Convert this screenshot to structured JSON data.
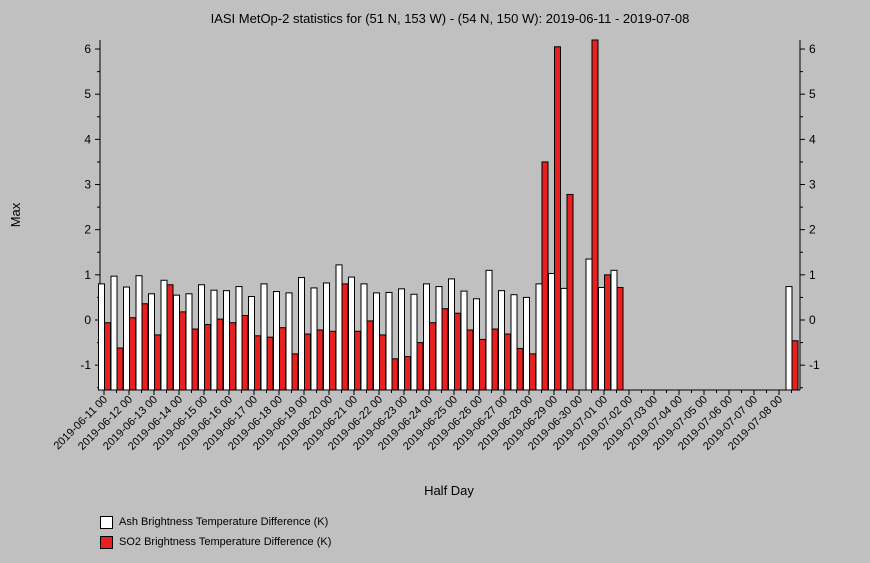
{
  "chart_data": {
    "type": "bar",
    "title": "IASI MetOp-2 statistics for (51 N, 153 W) - (54 N, 150 W): 2019-06-11 - 2019-07-08",
    "xlabel": "Half Day",
    "ylabel": "Max",
    "ylim": [
      -1.55,
      6.2
    ],
    "yticks": [
      -1,
      0,
      1,
      2,
      3,
      4,
      5,
      6
    ],
    "x_tick_labels": [
      "2019-06-11 00",
      "2019-06-12 00",
      "2019-06-13 00",
      "2019-06-14 00",
      "2019-06-15 00",
      "2019-06-16 00",
      "2019-06-17 00",
      "2019-06-18 00",
      "2019-06-19 00",
      "2019-06-20 00",
      "2019-06-21 00",
      "2019-06-22 00",
      "2019-06-23 00",
      "2019-06-24 00",
      "2019-06-25 00",
      "2019-06-26 00",
      "2019-06-27 00",
      "2019-06-28 00",
      "2019-06-29 00",
      "2019-06-30 00",
      "2019-07-01 00",
      "2019-07-02 00",
      "2019-07-03 00",
      "2019-07-04 00",
      "2019-07-05 00",
      "2019-07-06 00",
      "2019-07-07 00",
      "2019-07-08 00"
    ],
    "grid": false,
    "legend_position": "bottom-left",
    "series": [
      {
        "name": "Ash Brightness Temperature Difference (K)",
        "color": "#ffffff",
        "values": [
          0.8,
          0.97,
          0.73,
          0.98,
          0.58,
          0.88,
          0.55,
          0.58,
          0.78,
          0.66,
          0.65,
          0.74,
          0.52,
          0.8,
          0.63,
          0.6,
          0.94,
          0.71,
          0.82,
          1.22,
          0.95,
          0.8,
          0.6,
          0.61,
          0.69,
          0.57,
          0.8,
          0.74,
          0.91,
          0.64,
          0.47,
          1.1,
          0.65,
          0.56,
          0.5,
          0.8,
          1.03,
          0.7,
          null,
          1.35,
          0.72,
          1.1,
          null,
          null,
          null,
          null,
          null,
          null,
          null,
          null,
          null,
          null,
          null,
          null,
          null,
          0.74
        ]
      },
      {
        "name": "SO2 Brightness Temperature Difference (K)",
        "color": "#e82020",
        "values": [
          -0.06,
          -0.62,
          0.05,
          0.36,
          -0.33,
          0.78,
          0.18,
          -0.2,
          -0.1,
          0.02,
          -0.06,
          0.1,
          -0.35,
          -0.38,
          -0.17,
          -0.75,
          -0.31,
          -0.22,
          -0.25,
          0.8,
          -0.25,
          -0.02,
          -0.33,
          -0.86,
          -0.81,
          -0.5,
          -0.06,
          0.25,
          0.15,
          -0.22,
          -0.43,
          -0.2,
          -0.31,
          -0.63,
          -0.75,
          3.5,
          6.05,
          2.78,
          null,
          6.2,
          1.0,
          0.72,
          null,
          null,
          null,
          null,
          null,
          null,
          null,
          null,
          null,
          null,
          null,
          null,
          null,
          -0.46
        ]
      }
    ]
  }
}
